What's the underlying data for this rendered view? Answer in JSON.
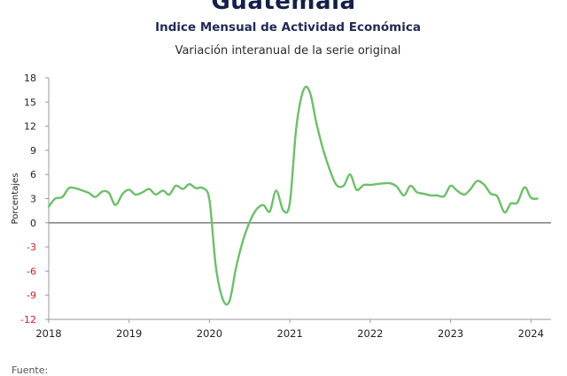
{
  "header": {
    "country": "Guatemala",
    "title": "Indice Mensual de  Actividad Económica",
    "subtitle": "Variación interanual de la serie original"
  },
  "footer": {
    "source_label": "Fuente:"
  },
  "colors": {
    "line": "#6dbf6a",
    "zero_line": "#888888",
    "axis_text": "#222222",
    "negative_text": "#d42020"
  },
  "chart_data": {
    "type": "line",
    "title": "Indice Mensual de  Actividad Económica",
    "subtitle": "Variación interanual de la serie original",
    "ylabel": "Porcentajes",
    "xlabel": "",
    "ylim": [
      -12,
      18
    ],
    "xlim": [
      2018.0,
      2024.25
    ],
    "yticks": [
      18,
      15,
      12,
      9,
      6,
      3,
      0,
      -3,
      -6,
      -9,
      -12
    ],
    "xticks": [
      2018,
      2019,
      2020,
      2021,
      2022,
      2023,
      2024
    ],
    "grid": false,
    "series": [
      {
        "x": [
          2018.0,
          2018.08,
          2018.17,
          2018.25,
          2018.33,
          2018.42,
          2018.5,
          2018.58,
          2018.67,
          2018.75,
          2018.83,
          2018.92,
          2019.0,
          2019.08,
          2019.17,
          2019.25,
          2019.33,
          2019.42,
          2019.5,
          2019.58,
          2019.67,
          2019.75,
          2019.83,
          2019.92,
          2020.0,
          2020.08,
          2020.17,
          2020.25,
          2020.33,
          2020.42,
          2020.5,
          2020.58,
          2020.67,
          2020.75,
          2020.83,
          2020.92,
          2021.0,
          2021.08,
          2021.17,
          2021.25,
          2021.33,
          2021.42,
          2021.5,
          2021.58,
          2021.67,
          2021.75,
          2021.83,
          2021.92,
          2022.0,
          2022.08,
          2022.17,
          2022.25,
          2022.33,
          2022.42,
          2022.5,
          2022.58,
          2022.67,
          2022.75,
          2022.83,
          2022.92,
          2023.0,
          2023.08,
          2023.17,
          2023.25,
          2023.33,
          2023.42,
          2023.5,
          2023.58,
          2023.67,
          2023.75,
          2023.83,
          2023.92,
          2024.0,
          2024.08
        ],
        "values": [
          2.0,
          3.0,
          3.2,
          4.3,
          4.3,
          4.0,
          3.7,
          3.2,
          3.9,
          3.7,
          2.2,
          3.6,
          4.1,
          3.5,
          3.8,
          4.2,
          3.5,
          4.0,
          3.5,
          4.6,
          4.2,
          4.8,
          4.3,
          4.3,
          2.8,
          -5.5,
          -9.6,
          -9.7,
          -5.6,
          -2.1,
          0.1,
          1.6,
          2.2,
          1.4,
          4.0,
          1.5,
          2.5,
          11.8,
          16.5,
          16.2,
          12.4,
          8.9,
          6.5,
          4.7,
          4.6,
          6.0,
          4.1,
          4.7,
          4.7,
          4.8,
          4.9,
          4.9,
          4.5,
          3.4,
          4.6,
          3.8,
          3.6,
          3.4,
          3.4,
          3.3,
          4.6,
          4.0,
          3.5,
          4.2,
          5.2,
          4.7,
          3.6,
          3.3,
          1.3,
          2.4,
          2.5,
          4.4,
          3.1,
          3.0
        ]
      }
    ]
  }
}
